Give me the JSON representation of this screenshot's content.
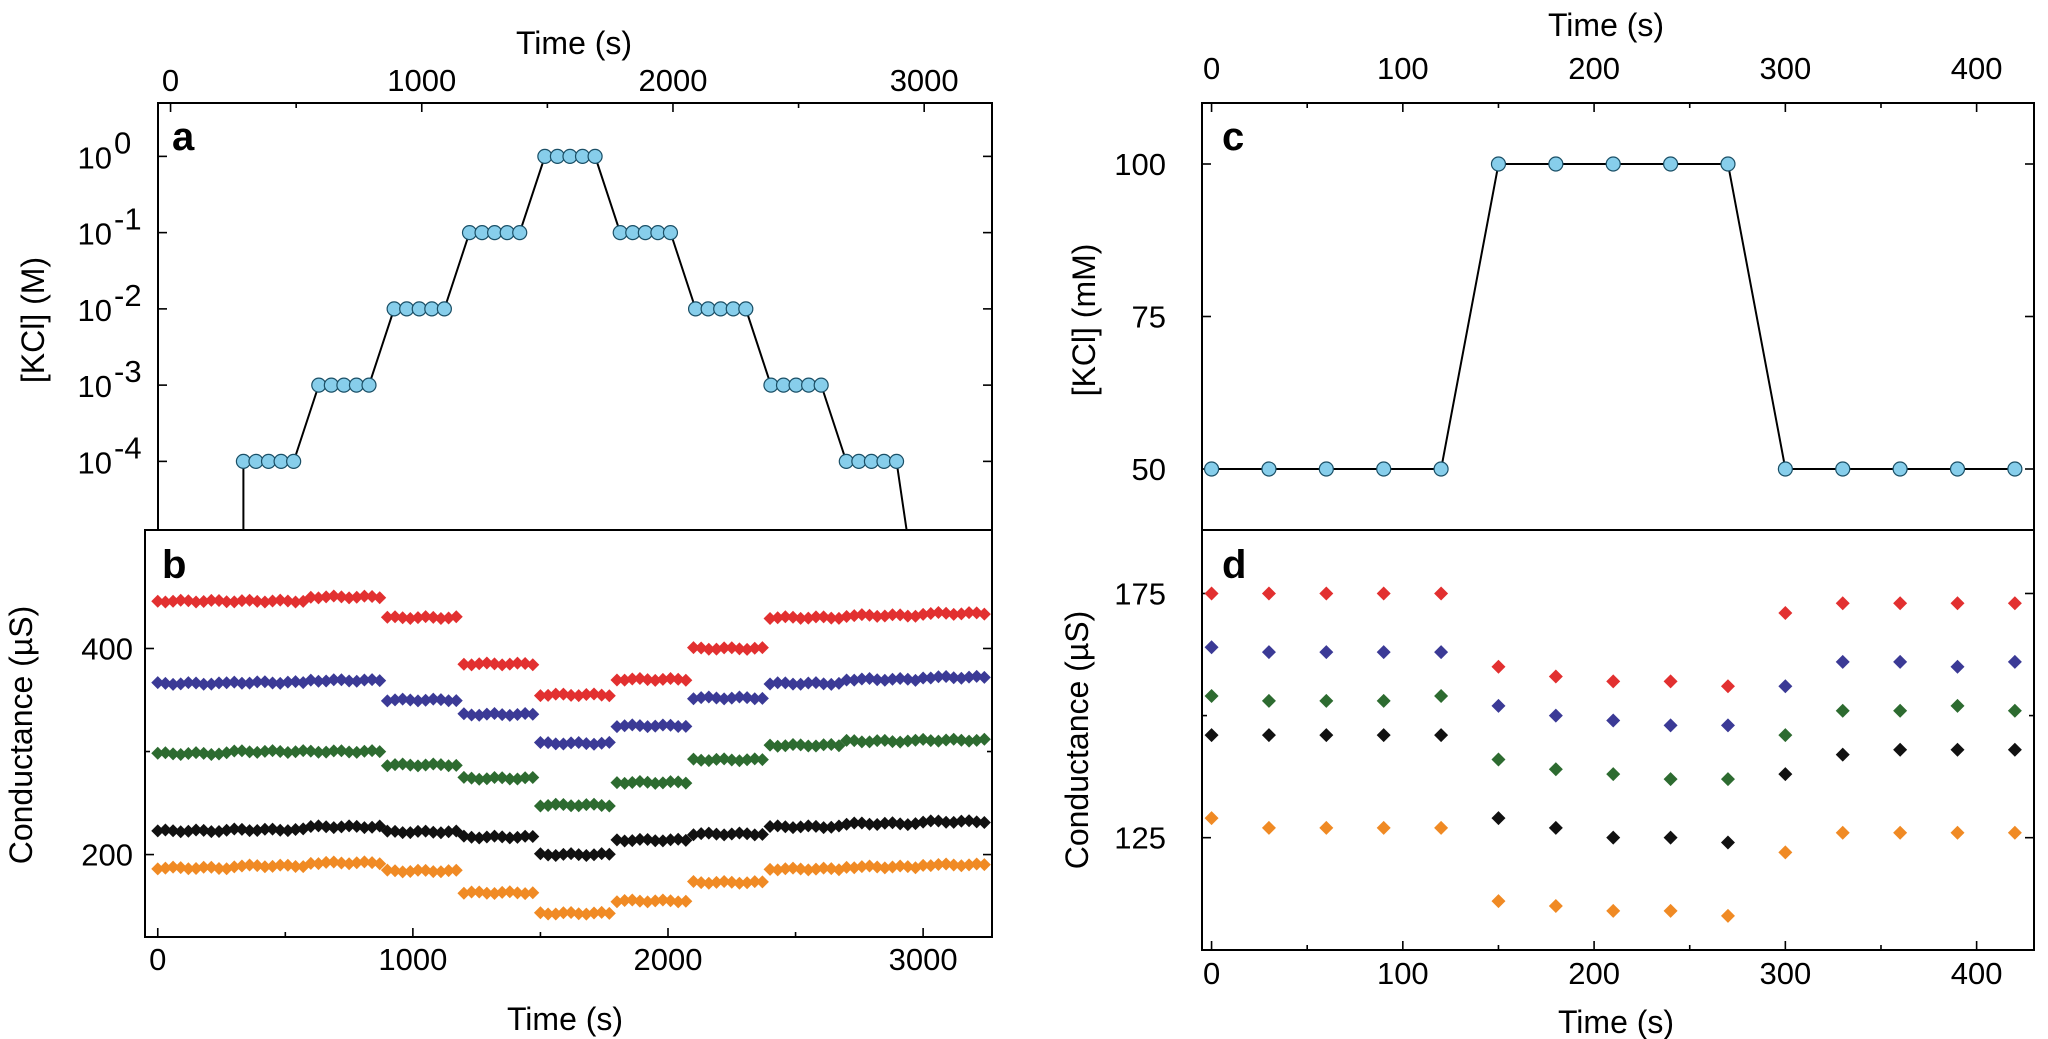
{
  "chart_data": [
    {
      "panel": "a",
      "type": "line",
      "xlabel_top": "Time (s)",
      "ylabel": "[KCl] (M)",
      "xlim": [
        -50,
        3270
      ],
      "ylim_log10": [
        -4.9,
        0.7
      ],
      "yscale": "log",
      "xticks": [
        0,
        1000,
        2000,
        3000
      ],
      "xtick_labels": [
        "0",
        "1000",
        "2000",
        "3000"
      ],
      "yticks_log10": [
        0,
        -1,
        -2,
        -3,
        -4
      ],
      "ytick_bases": [
        "10",
        "10",
        "10",
        "10",
        "10"
      ],
      "ytick_exponents": [
        "0",
        "-1",
        "-2",
        "-3",
        "-4"
      ],
      "line_start": [
        290,
        -4.9
      ],
      "line_end": [
        2930,
        -4.9
      ],
      "marker_color": "#87ceeb",
      "points": [
        [
          290,
          -4
        ],
        [
          340,
          -4
        ],
        [
          390,
          -4
        ],
        [
          440,
          -4
        ],
        [
          490,
          -4
        ],
        [
          590,
          -3
        ],
        [
          640,
          -3
        ],
        [
          690,
          -3
        ],
        [
          740,
          -3
        ],
        [
          790,
          -3
        ],
        [
          890,
          -2
        ],
        [
          940,
          -2
        ],
        [
          990,
          -2
        ],
        [
          1040,
          -2
        ],
        [
          1090,
          -2
        ],
        [
          1190,
          -1
        ],
        [
          1240,
          -1
        ],
        [
          1290,
          -1
        ],
        [
          1340,
          -1
        ],
        [
          1390,
          -1
        ],
        [
          1490,
          0
        ],
        [
          1540,
          0
        ],
        [
          1590,
          0
        ],
        [
          1640,
          0
        ],
        [
          1690,
          0
        ],
        [
          1790,
          -1
        ],
        [
          1840,
          -1
        ],
        [
          1890,
          -1
        ],
        [
          1940,
          -1
        ],
        [
          1990,
          -1
        ],
        [
          2090,
          -2
        ],
        [
          2140,
          -2
        ],
        [
          2190,
          -2
        ],
        [
          2240,
          -2
        ],
        [
          2290,
          -2
        ],
        [
          2390,
          -3
        ],
        [
          2440,
          -3
        ],
        [
          2490,
          -3
        ],
        [
          2540,
          -3
        ],
        [
          2590,
          -3
        ],
        [
          2690,
          -4
        ],
        [
          2740,
          -4
        ],
        [
          2790,
          -4
        ],
        [
          2840,
          -4
        ],
        [
          2890,
          -4
        ]
      ]
    },
    {
      "panel": "b",
      "type": "scatter",
      "xlabel": "Time (s)",
      "ylabel": "Conductance (µS)",
      "xlim": [
        -50,
        3270
      ],
      "ylim": [
        120,
        515
      ],
      "xticks": [
        0,
        1000,
        2000,
        3000
      ],
      "xtick_labels": [
        "0",
        "1000",
        "2000",
        "3000"
      ],
      "yticks": [
        200,
        400
      ],
      "ytick_labels": [
        "200",
        "400"
      ],
      "minor_yticks": [
        300
      ],
      "step_times": [
        0,
        300,
        600,
        900,
        1200,
        1500,
        1800,
        2100,
        2400,
        2700,
        3000
      ],
      "series": [
        {
          "name": "red",
          "color": "#e23030",
          "values": [
            446,
            446,
            450,
            430,
            385,
            355,
            370,
            400,
            430,
            432,
            434
          ]
        },
        {
          "name": "blue",
          "color": "#3b3a96",
          "values": [
            366,
            367,
            369,
            350,
            336,
            308,
            325,
            352,
            366,
            370,
            372
          ]
        },
        {
          "name": "green",
          "color": "#2d6b30",
          "values": [
            298,
            300,
            300,
            287,
            274,
            248,
            270,
            292,
            306,
            310,
            311
          ]
        },
        {
          "name": "black",
          "color": "#111111",
          "values": [
            223,
            224,
            227,
            222,
            217,
            200,
            214,
            220,
            227,
            230,
            232
          ]
        },
        {
          "name": "orange",
          "color": "#f08a24",
          "values": [
            187,
            189,
            192,
            184,
            163,
            143,
            155,
            173,
            186,
            188,
            190
          ]
        }
      ]
    },
    {
      "panel": "c",
      "type": "line",
      "xlabel_top": "Time (s)",
      "ylabel": "[KCl] (mM)",
      "xlim": [
        -5,
        430
      ],
      "ylim": [
        40,
        110
      ],
      "xticks": [
        0,
        100,
        200,
        300,
        400
      ],
      "xtick_labels": [
        "0",
        "100",
        "200",
        "300",
        "400"
      ],
      "yticks": [
        50,
        75,
        100
      ],
      "ytick_labels": [
        "50",
        "75",
        "100"
      ],
      "marker_color": "#87ceeb",
      "points": [
        [
          0,
          50
        ],
        [
          30,
          50
        ],
        [
          60,
          50
        ],
        [
          90,
          50
        ],
        [
          120,
          50
        ],
        [
          150,
          100
        ],
        [
          180,
          100
        ],
        [
          210,
          100
        ],
        [
          240,
          100
        ],
        [
          270,
          100
        ],
        [
          300,
          50
        ],
        [
          330,
          50
        ],
        [
          360,
          50
        ],
        [
          390,
          50
        ],
        [
          420,
          50
        ]
      ]
    },
    {
      "panel": "d",
      "type": "scatter",
      "xlabel": "Time (s)",
      "ylabel": "Conductance (µS)",
      "xlim": [
        -5,
        430
      ],
      "ylim": [
        102,
        188
      ],
      "xticks": [
        0,
        100,
        200,
        300,
        400
      ],
      "xtick_labels": [
        "0",
        "100",
        "200",
        "300",
        "400"
      ],
      "yticks": [
        125,
        175
      ],
      "ytick_labels": [
        "125",
        "175"
      ],
      "minor_yticks": [
        150
      ],
      "x": [
        0,
        30,
        60,
        90,
        120,
        150,
        180,
        210,
        240,
        270,
        300,
        330,
        360,
        390,
        420
      ],
      "series": [
        {
          "name": "red",
          "color": "#e23030",
          "values": [
            175,
            175,
            175,
            175,
            175,
            160,
            158,
            157,
            157,
            156,
            171,
            173,
            173,
            173,
            173
          ]
        },
        {
          "name": "blue",
          "color": "#3b3a96",
          "values": [
            164,
            163,
            163,
            163,
            163,
            152,
            150,
            149,
            148,
            148,
            156,
            161,
            161,
            160,
            161
          ]
        },
        {
          "name": "green",
          "color": "#2d6b30",
          "values": [
            154,
            153,
            153,
            153,
            154,
            141,
            139,
            138,
            137,
            137,
            146,
            151,
            151,
            152,
            151
          ]
        },
        {
          "name": "black",
          "color": "#111111",
          "values": [
            146,
            146,
            146,
            146,
            146,
            129,
            127,
            125,
            125,
            124,
            138,
            142,
            143,
            143,
            143
          ]
        },
        {
          "name": "orange",
          "color": "#f08a24",
          "values": [
            129,
            127,
            127,
            127,
            127,
            112,
            111,
            110,
            110,
            109,
            122,
            126,
            126,
            126,
            126
          ]
        }
      ]
    }
  ]
}
